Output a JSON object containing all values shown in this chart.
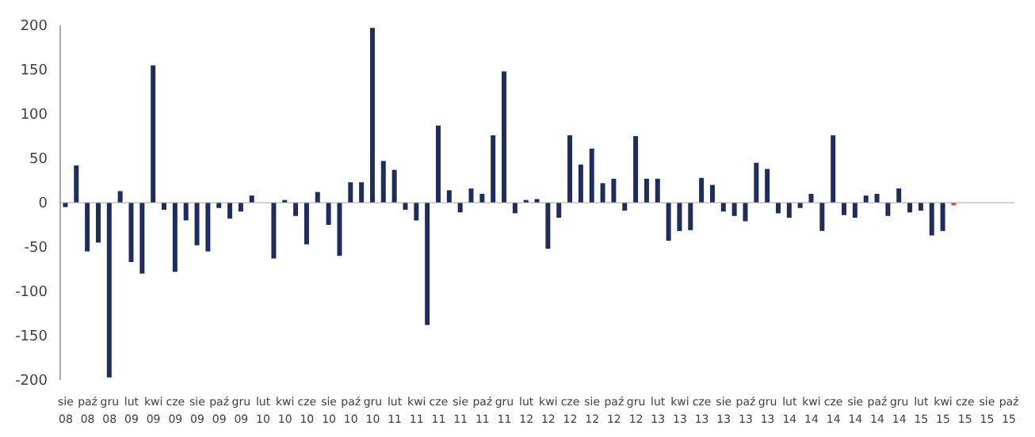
{
  "chart_data": {
    "type": "bar",
    "categories": [
      "sie 08",
      null,
      "paź 08",
      null,
      "gru 08",
      null,
      "lut 09",
      null,
      "kwi 09",
      null,
      "cze 09",
      null,
      "sie 09",
      null,
      "paź 09",
      null,
      "gru 09",
      null,
      "lut 10",
      null,
      "kwi 10",
      null,
      "cze 10",
      null,
      "sie 10",
      null,
      "paź 10",
      null,
      "gru 10",
      null,
      "lut 11",
      null,
      "kwi 11",
      null,
      "cze 11",
      null,
      "sie 11",
      null,
      "paź 11",
      null,
      "gru 11",
      null,
      "lut 12",
      null,
      "kwi 12",
      null,
      "cze 12",
      null,
      "sie 12",
      null,
      "paź 12",
      null,
      "gru 12",
      null,
      "lut 13",
      null,
      "kwi 13",
      null,
      "cze 13",
      null,
      "sie 13",
      null,
      "paź 13",
      null,
      "gru 13",
      null,
      "lut 14",
      null,
      "kwi 14",
      null,
      "cze 14",
      null,
      "sie 14",
      null,
      "paź 14",
      null,
      "gru 14",
      null,
      "lut 15",
      null,
      "kwi 15",
      null,
      "cze 15",
      null,
      "sie 15",
      null,
      "paź 15"
    ],
    "values": [
      -5,
      42,
      -55,
      -45,
      -197,
      13,
      -67,
      -80,
      155,
      -8,
      -78,
      -20,
      -48,
      -55,
      -6,
      -18,
      -10,
      8,
      0,
      -63,
      3,
      -15,
      -47,
      12,
      -25,
      -60,
      23,
      23,
      197,
      47,
      37,
      -8,
      -20,
      -138,
      87,
      14,
      -11,
      16,
      10,
      76,
      148,
      -12,
      3,
      4,
      -52,
      -17,
      76,
      43,
      61,
      22,
      27,
      -9,
      75,
      27,
      27,
      -43,
      -32,
      -31,
      28,
      20,
      -10,
      -15,
      -21,
      45,
      38,
      -12,
      -17,
      -6,
      10,
      -32,
      76,
      -14,
      -17,
      8,
      10,
      -15,
      16,
      -11,
      -9,
      -37,
      -32,
      -3,
      null,
      null,
      null,
      null,
      null
    ],
    "colors": [
      "#1f2d5c",
      "#1f2d5c",
      "#1f2d5c",
      "#1f2d5c",
      "#1f2d5c",
      "#1f2d5c",
      "#1f2d5c",
      "#1f2d5c",
      "#1f2d5c",
      "#1f2d5c",
      "#1f2d5c",
      "#1f2d5c",
      "#1f2d5c",
      "#1f2d5c",
      "#1f2d5c",
      "#1f2d5c",
      "#1f2d5c",
      "#1f2d5c",
      "#1f2d5c",
      "#1f2d5c",
      "#1f2d5c",
      "#1f2d5c",
      "#1f2d5c",
      "#1f2d5c",
      "#1f2d5c",
      "#1f2d5c",
      "#1f2d5c",
      "#1f2d5c",
      "#1f2d5c",
      "#1f2d5c",
      "#1f2d5c",
      "#1f2d5c",
      "#1f2d5c",
      "#1f2d5c",
      "#1f2d5c",
      "#1f2d5c",
      "#1f2d5c",
      "#1f2d5c",
      "#1f2d5c",
      "#1f2d5c",
      "#1f2d5c",
      "#1f2d5c",
      "#1f2d5c",
      "#1f2d5c",
      "#1f2d5c",
      "#1f2d5c",
      "#1f2d5c",
      "#1f2d5c",
      "#1f2d5c",
      "#1f2d5c",
      "#1f2d5c",
      "#1f2d5c",
      "#1f2d5c",
      "#1f2d5c",
      "#1f2d5c",
      "#1f2d5c",
      "#1f2d5c",
      "#1f2d5c",
      "#1f2d5c",
      "#1f2d5c",
      "#1f2d5c",
      "#1f2d5c",
      "#1f2d5c",
      "#1f2d5c",
      "#1f2d5c",
      "#1f2d5c",
      "#1f2d5c",
      "#1f2d5c",
      "#1f2d5c",
      "#1f2d5c",
      "#1f2d5c",
      "#1f2d5c",
      "#1f2d5c",
      "#1f2d5c",
      "#1f2d5c",
      "#1f2d5c",
      "#1f2d5c",
      "#1f2d5c",
      "#1f2d5c",
      "#1f2d5c",
      "#1f2d5c",
      "#e0413c",
      "#1f2d5c",
      "#1f2d5c",
      "#1f2d5c",
      "#1f2d5c",
      "#1f2d5c"
    ],
    "ylim": [
      -200,
      200
    ],
    "yticks": [
      -200,
      -150,
      -100,
      -50,
      0,
      50,
      100,
      150,
      200
    ],
    "ref_lines": [
      {
        "axis": "y",
        "value": 0,
        "color": "#a6a6a6"
      }
    ],
    "grid": false,
    "legend": false
  }
}
